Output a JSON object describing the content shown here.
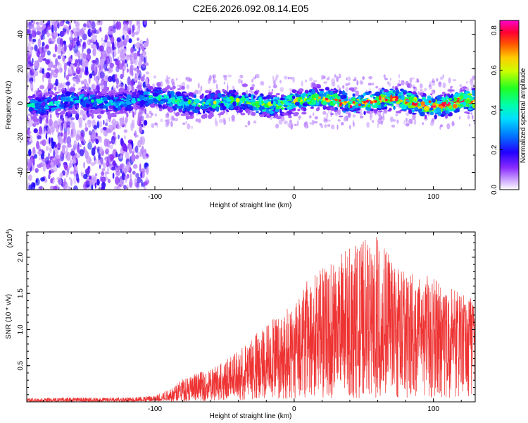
{
  "title": "C2E6.2026.092.08.14.E05",
  "chart_data": [
    {
      "type": "heatmap",
      "panel": "spectrogram",
      "xlabel": "Height of straight line (km)",
      "ylabel": "Frequency (Hz)",
      "xlim": [
        -192,
        130
      ],
      "ylim": [
        -50,
        48
      ],
      "xticks": [
        -100,
        0,
        100
      ],
      "yticks": [
        -40,
        -20,
        0,
        20,
        40
      ],
      "xtick_labels": [
        "-100",
        "0",
        "100"
      ],
      "ytick_labels": [
        "-40",
        "-20",
        "0",
        "20",
        "40"
      ],
      "noise_region_x": [
        -192,
        -105
      ],
      "signal_band_center_hz": 1,
      "signal_band_halfwidth_hz": 5,
      "colorbar": {
        "label": "Normalized spectral amplitude",
        "range": [
          0.0,
          0.85
        ],
        "ticks": [
          0.0,
          0.2,
          0.4,
          0.6,
          0.8
        ],
        "tick_labels": [
          "0.0",
          "0.2",
          "0.4",
          "0.6",
          "0.8"
        ],
        "colors": [
          "#ffffff",
          "#b070ff",
          "#7000ff",
          "#0000ff",
          "#00aaff",
          "#00ffcc",
          "#00ff00",
          "#ffff00",
          "#ff8800",
          "#ff0000",
          "#ff00aa"
        ]
      }
    },
    {
      "type": "line",
      "panel": "snr",
      "xlabel": "Height of straight line (km)",
      "ylabel": "SNR (10 * v/v)",
      "scale_label": "(x10",
      "scale_exp": "4",
      "scale_close": ")",
      "xlim": [
        -192,
        130
      ],
      "ylim": [
        0,
        23500
      ],
      "xticks": [
        -100,
        0,
        100
      ],
      "yticks": [
        5000,
        10000,
        15000,
        20000
      ],
      "xtick_labels": [
        "-100",
        "0",
        "100"
      ],
      "ytick_labels": [
        "0.5",
        "1.0",
        "1.5",
        "2.0"
      ],
      "color": "#ee3333",
      "envelope": {
        "x": [
          -192,
          -160,
          -120,
          -100,
          -90,
          -80,
          -70,
          -60,
          -50,
          -40,
          -30,
          -20,
          -10,
          0,
          10,
          20,
          30,
          40,
          50,
          60,
          70,
          80,
          90,
          100,
          110,
          120,
          130
        ],
        "mean": [
          200,
          250,
          250,
          350,
          900,
          1700,
          1800,
          2000,
          3000,
          3500,
          4500,
          5500,
          6500,
          8000,
          9000,
          9500,
          10000,
          10500,
          10500,
          10500,
          10000,
          10000,
          10000,
          10000,
          10000,
          10000,
          10500
        ],
        "max": [
          500,
          600,
          600,
          900,
          1800,
          3200,
          4000,
          4500,
          6000,
          7000,
          9000,
          11000,
          12000,
          14000,
          17000,
          18500,
          20000,
          21500,
          22500,
          23000,
          20000,
          18000,
          18000,
          17000,
          16000,
          15000,
          14000
        ]
      }
    }
  ]
}
